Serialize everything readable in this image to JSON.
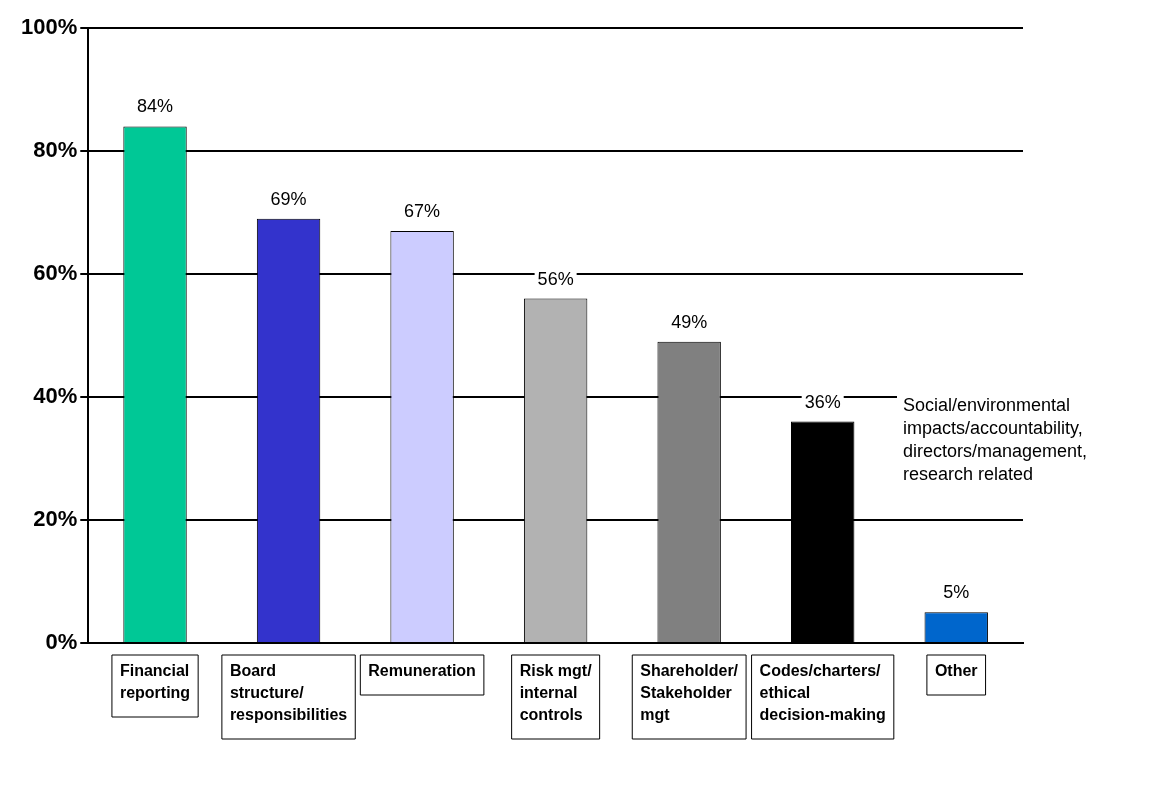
{
  "chart_data": {
    "type": "bar",
    "categories": [
      "Financial reporting",
      "Board structure/ responsibilities",
      "Remuneration",
      "Risk mgt/ internal controls",
      "Shareholder/ Stakeholder mgt",
      "Codes/charters/ ethical decision-making",
      "Other"
    ],
    "values": [
      84,
      69,
      67,
      56,
      49,
      36,
      5
    ],
    "colors": [
      "#00c896",
      "#3333cc",
      "#ccccff",
      "#b2b2b2",
      "#808080",
      "#000000",
      "#0066cc"
    ],
    "value_labels": [
      "84%",
      "69%",
      "67%",
      "56%",
      "49%",
      "36%",
      "5%"
    ],
    "ylim": [
      0,
      100
    ],
    "yticks": [
      {
        "value": 0,
        "label": "0%"
      },
      {
        "value": 20,
        "label": "20%"
      },
      {
        "value": 40,
        "label": "40%"
      },
      {
        "value": 60,
        "label": "60%"
      },
      {
        "value": 80,
        "label": "80%"
      },
      {
        "value": 100,
        "label": "100%"
      }
    ],
    "grid": "y",
    "legend": false,
    "annotations": [
      "Social/environmental impacts/accountability, directors/management, research related"
    ]
  }
}
